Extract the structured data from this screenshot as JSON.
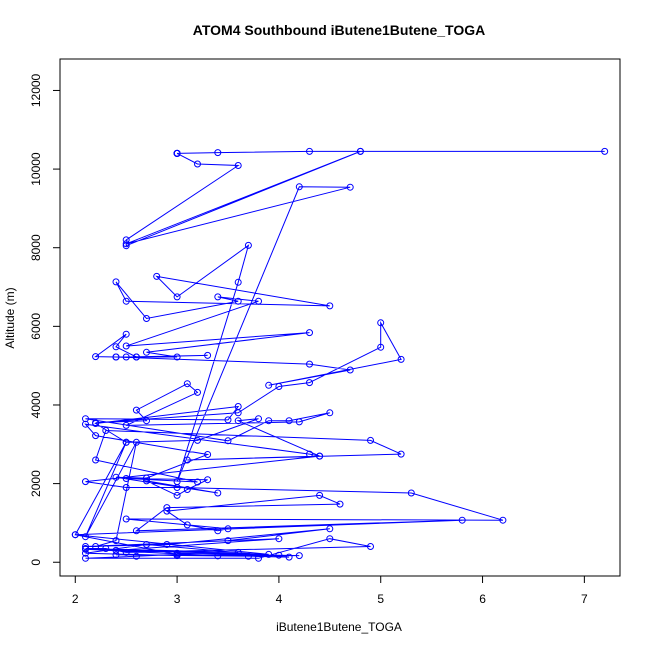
{
  "chart_data": {
    "type": "line",
    "title": "ATOM4 Southbound iButene1Butene_TOGA",
    "xlabel": "iButene1Butene_TOGA",
    "ylabel": "Altitude (m)",
    "xlim": [
      1.85,
      7.35
    ],
    "ylim": [
      -350,
      12800
    ],
    "x_ticks": [
      2,
      3,
      4,
      5,
      6,
      7
    ],
    "y_ticks": [
      0,
      2000,
      4000,
      6000,
      8000,
      10000,
      12000
    ],
    "x_tick_labels": [
      "2",
      "3",
      "4",
      "5",
      "6",
      "7"
    ],
    "y_tick_labels": [
      "0",
      "2000",
      "4000",
      "6000",
      "8000",
      "10000",
      "12000"
    ],
    "grid": false,
    "series_color": "#0000ff",
    "marker": "open-circle",
    "series": [
      {
        "x": [
          7.2,
          4.8,
          4.3,
          3.4,
          3.0,
          3.0,
          3.0,
          3.0,
          3.0,
          3.0,
          3.0,
          3.2,
          3.6,
          2.5,
          2.5,
          4.8,
          2.5,
          4.7,
          4.2,
          3.0,
          3.6,
          3.7,
          3.0,
          2.8,
          4.5,
          2.5,
          2.4,
          2.7,
          3.6,
          3.4,
          3.8,
          2.5,
          4.3,
          2.7,
          3.0,
          2.6,
          3.3,
          2.5,
          2.4,
          2.6,
          2.4,
          2.5,
          2.2,
          2.4,
          4.3,
          4.7,
          3.9,
          5.2,
          5.0,
          5.0,
          4.3,
          4.0,
          3.6,
          2.2,
          2.7,
          2.6,
          3.1,
          3.2,
          2.5,
          4.2,
          4.5,
          4.1,
          3.9,
          3.5,
          2.1,
          3.5,
          3.6,
          2.2,
          2.5,
          3.2,
          3.8,
          3.6,
          4.4,
          4.3,
          2.1,
          2.2,
          3.3,
          2.7,
          2.4,
          3.4,
          2.7,
          3.0,
          3.1,
          3.3,
          2.5,
          3.2,
          2.2,
          2.3,
          4.9,
          5.2,
          3.1,
          4.4,
          2.1,
          2.5,
          3.0,
          5.3,
          6.2,
          2.5,
          3.5,
          3.4,
          3.1,
          2.9,
          4.4,
          4.6,
          2.9,
          2.6,
          5.8,
          2.0,
          2.5,
          2.1,
          2.6,
          2.4,
          2.2,
          3.5,
          4.5,
          2.9,
          2.1,
          4.0,
          2.4,
          3.9,
          2.0,
          3.0,
          2.6,
          2.1,
          3.8,
          4.5,
          4.9,
          2.5,
          2.3,
          2.1,
          3.6,
          2.1,
          3.4,
          4.2,
          3.0,
          4.0,
          2.4,
          3.7,
          4.1,
          2.7,
          2.1,
          3.0
        ],
        "y": [
          10450,
          10450,
          10450,
          10420,
          10400,
          10400,
          10400,
          10400,
          10400,
          10400,
          10400,
          10130,
          10090,
          8200,
          8050,
          10450,
          8100,
          9540,
          9550,
          2050,
          7120,
          8060,
          6750,
          7270,
          6520,
          6640,
          7130,
          6200,
          6640,
          6750,
          6640,
          5500,
          5840,
          5340,
          5220,
          5220,
          5260,
          5220,
          5220,
          5220,
          5480,
          5800,
          5230,
          5220,
          5040,
          4890,
          4500,
          5160,
          6090,
          5470,
          4570,
          4470,
          3800,
          3550,
          3600,
          3870,
          4540,
          4320,
          3480,
          3570,
          3800,
          3600,
          3600,
          3090,
          3650,
          3620,
          3960,
          3530,
          3050,
          3100,
          3650,
          3600,
          2700,
          2750,
          3510,
          3220,
          2740,
          2140,
          2160,
          1760,
          2070,
          1700,
          1850,
          2100,
          2130,
          2040,
          2600,
          3350,
          3100,
          2750,
          2600,
          2700,
          2050,
          1900,
          1900,
          1760,
          1070,
          1100,
          850,
          800,
          950,
          1300,
          1700,
          1480,
          1390,
          800,
          1070,
          700,
          3050,
          650,
          3050,
          550,
          400,
          550,
          850,
          450,
          400,
          600,
          300,
          200,
          700,
          200,
          150,
          100,
          100,
          600,
          400,
          250,
          350,
          350,
          250,
          330,
          160,
          170,
          230,
          180,
          190,
          150,
          130,
          450,
          230,
          170
        ]
      }
    ]
  }
}
